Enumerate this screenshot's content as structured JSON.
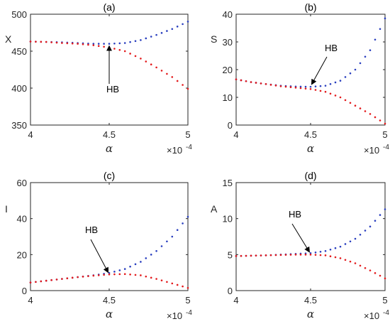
{
  "chart_data": [
    {
      "type": "scatter",
      "title": "(a)",
      "ylabel": "X",
      "xlabel": "α",
      "xlim": [
        4,
        5
      ],
      "ylim": [
        350,
        500
      ],
      "xticks": [
        "4",
        "4.5",
        "5"
      ],
      "yticks": [
        "350",
        "400",
        "450",
        "500"
      ],
      "x_multiplier": "×10",
      "x_multiplier_exp": "-4",
      "annotation": {
        "text": "HB",
        "points_to": [
          4.5,
          460
        ]
      },
      "series": [
        {
          "color": "#2a3fbf",
          "x": [
            4.0,
            4.1,
            4.2,
            4.3,
            4.4,
            4.5,
            4.6,
            4.7,
            4.8,
            4.9,
            5.0
          ],
          "y": [
            463,
            462.5,
            462,
            461,
            460,
            460,
            461,
            465,
            472,
            480,
            490
          ]
        },
        {
          "color": "#e31a1c",
          "x": [
            4.0,
            4.1,
            4.2,
            4.3,
            4.4,
            4.5,
            4.6,
            4.7,
            4.8,
            4.9,
            5.0
          ],
          "y": [
            463,
            462.5,
            461,
            460,
            458,
            455,
            450,
            440,
            428,
            415,
            399
          ]
        }
      ]
    },
    {
      "type": "scatter",
      "title": "(b)",
      "ylabel": "S",
      "xlabel": "α",
      "xlim": [
        4,
        5
      ],
      "ylim": [
        0,
        40
      ],
      "xticks": [
        "4",
        "4.5",
        "5"
      ],
      "yticks": [
        "0",
        "10",
        "20",
        "30",
        "40"
      ],
      "x_multiplier": "×10",
      "x_multiplier_exp": "-4",
      "annotation": {
        "text": "HB",
        "points_to": [
          4.5,
          14
        ]
      },
      "series": [
        {
          "color": "#2a3fbf",
          "x": [
            4.0,
            4.1,
            4.2,
            4.3,
            4.4,
            4.5,
            4.6,
            4.7,
            4.8,
            4.9,
            5.0
          ],
          "y": [
            16.5,
            15.5,
            14.8,
            14.2,
            13.9,
            13.8,
            14.2,
            16,
            20,
            27,
            38.5
          ]
        },
        {
          "color": "#e31a1c",
          "x": [
            4.0,
            4.1,
            4.2,
            4.3,
            4.4,
            4.5,
            4.6,
            4.7,
            4.8,
            4.9,
            5.0
          ],
          "y": [
            16.5,
            15.5,
            14.8,
            14,
            13.5,
            13,
            12,
            10,
            7,
            4,
            0.5
          ]
        }
      ]
    },
    {
      "type": "scatter",
      "title": "(c)",
      "ylabel": "I",
      "xlabel": "α",
      "xlim": [
        4,
        5
      ],
      "ylim": [
        0,
        60
      ],
      "xticks": [
        "4",
        "4.5",
        "5"
      ],
      "yticks": [
        "0",
        "20",
        "40",
        "60"
      ],
      "x_multiplier": "×10",
      "x_multiplier_exp": "-4",
      "annotation": {
        "text": "HB",
        "points_to": [
          4.5,
          9
        ]
      },
      "series": [
        {
          "color": "#2a3fbf",
          "x": [
            4.0,
            4.1,
            4.2,
            4.3,
            4.4,
            4.5,
            4.6,
            4.7,
            4.8,
            4.9,
            5.0
          ],
          "y": [
            4.5,
            5.5,
            6.5,
            7.5,
            8.5,
            9.8,
            12,
            16,
            22,
            30,
            41
          ]
        },
        {
          "color": "#e31a1c",
          "x": [
            4.0,
            4.1,
            4.2,
            4.3,
            4.4,
            4.5,
            4.6,
            4.7,
            4.8,
            4.9,
            5.0
          ],
          "y": [
            4.5,
            5.5,
            6.5,
            7.5,
            8.3,
            9,
            9.2,
            8.5,
            6.5,
            4,
            1.5
          ]
        }
      ]
    },
    {
      "type": "scatter",
      "title": "(d)",
      "ylabel": "A",
      "xlabel": "α",
      "xlim": [
        4,
        5
      ],
      "ylim": [
        0,
        15
      ],
      "xticks": [
        "4",
        "4.5",
        "5"
      ],
      "yticks": [
        "0",
        "5",
        "10",
        "15"
      ],
      "x_multiplier": "×10",
      "x_multiplier_exp": "-4",
      "annotation": {
        "text": "HB",
        "points_to": [
          4.5,
          5.1
        ]
      },
      "series": [
        {
          "color": "#2a3fbf",
          "x": [
            4.0,
            4.1,
            4.2,
            4.3,
            4.4,
            4.5,
            4.6,
            4.7,
            4.8,
            4.9,
            5.0
          ],
          "y": [
            4.8,
            4.85,
            4.9,
            5.0,
            5.1,
            5.2,
            5.5,
            6.1,
            7.2,
            8.9,
            11.3
          ]
        },
        {
          "color": "#e31a1c",
          "x": [
            4.0,
            4.1,
            4.2,
            4.3,
            4.4,
            4.5,
            4.6,
            4.7,
            4.8,
            4.9,
            5.0
          ],
          "y": [
            4.8,
            4.85,
            4.9,
            4.95,
            5.0,
            5.0,
            4.9,
            4.5,
            3.8,
            2.8,
            1.7
          ]
        }
      ]
    }
  ]
}
